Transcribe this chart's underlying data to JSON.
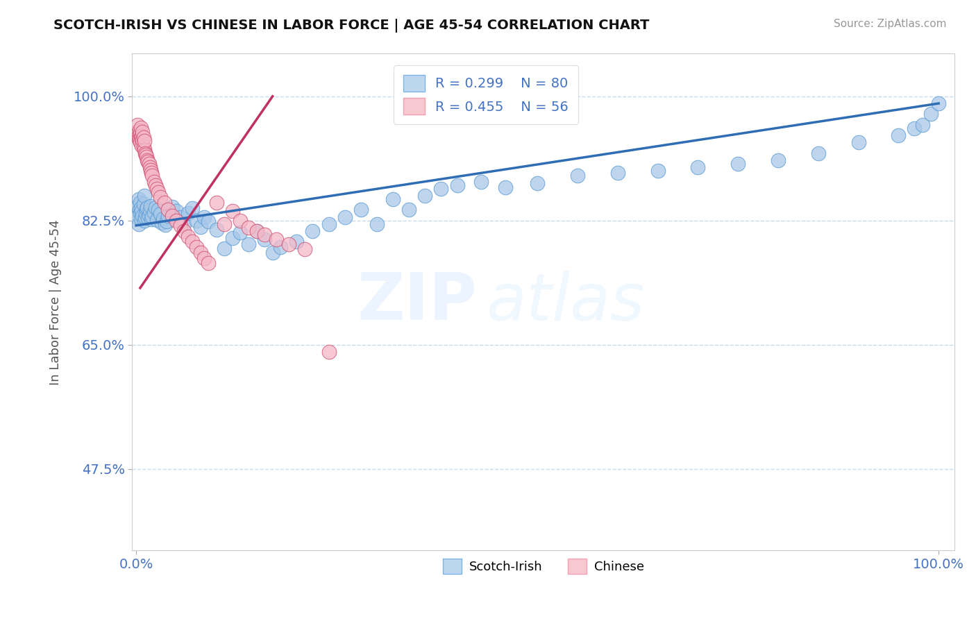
{
  "title": "SCOTCH-IRISH VS CHINESE IN LABOR FORCE | AGE 45-54 CORRELATION CHART",
  "source_text": "Source: ZipAtlas.com",
  "ylabel": "In Labor Force | Age 45-54",
  "xticks": [
    0.0,
    1.0
  ],
  "xticklabels": [
    "0.0%",
    "100.0%"
  ],
  "yticks": [
    0.475,
    0.65,
    0.825,
    1.0
  ],
  "yticklabels": [
    "47.5%",
    "65.0%",
    "82.5%",
    "100.0%"
  ],
  "watermark_zip": "ZIP",
  "watermark_atlas": "atlas",
  "blue_color": "#A8C8E8",
  "blue_edge": "#5B9BD5",
  "pink_color": "#F4B8C8",
  "pink_edge": "#D05070",
  "blue_line_color": "#2E6DB4",
  "pink_line_color": "#C03060",
  "grid_color": "#C8DCF0",
  "scotch_irish_x": [
    0.001,
    0.002,
    0.003,
    0.003,
    0.004,
    0.005,
    0.005,
    0.006,
    0.006,
    0.007,
    0.008,
    0.009,
    0.01,
    0.01,
    0.011,
    0.012,
    0.013,
    0.014,
    0.015,
    0.016,
    0.017,
    0.018,
    0.019,
    0.02,
    0.022,
    0.024,
    0.026,
    0.028,
    0.03,
    0.032,
    0.034,
    0.036,
    0.038,
    0.04,
    0.045,
    0.05,
    0.055,
    0.06,
    0.065,
    0.07,
    0.075,
    0.08,
    0.085,
    0.09,
    0.1,
    0.11,
    0.12,
    0.13,
    0.14,
    0.15,
    0.16,
    0.17,
    0.18,
    0.2,
    0.22,
    0.24,
    0.26,
    0.28,
    0.3,
    0.32,
    0.34,
    0.36,
    0.38,
    0.4,
    0.43,
    0.46,
    0.5,
    0.55,
    0.6,
    0.65,
    0.7,
    0.75,
    0.8,
    0.85,
    0.9,
    0.95,
    0.97,
    0.98,
    0.99,
    1.0
  ],
  "scotch_irish_y": [
    0.83,
    0.845,
    0.82,
    0.855,
    0.84,
    0.835,
    0.85,
    0.828,
    0.842,
    0.838,
    0.832,
    0.848,
    0.825,
    0.86,
    0.83,
    0.836,
    0.841,
    0.843,
    0.829,
    0.833,
    0.839,
    0.845,
    0.827,
    0.831,
    0.837,
    0.843,
    0.826,
    0.84,
    0.835,
    0.822,
    0.828,
    0.819,
    0.824,
    0.832,
    0.844,
    0.838,
    0.83,
    0.82,
    0.836,
    0.842,
    0.825,
    0.816,
    0.83,
    0.824,
    0.812,
    0.786,
    0.8,
    0.808,
    0.792,
    0.81,
    0.798,
    0.78,
    0.788,
    0.795,
    0.81,
    0.82,
    0.83,
    0.84,
    0.82,
    0.855,
    0.84,
    0.86,
    0.87,
    0.875,
    0.88,
    0.872,
    0.878,
    0.888,
    0.892,
    0.895,
    0.9,
    0.905,
    0.91,
    0.92,
    0.935,
    0.945,
    0.955,
    0.96,
    0.975,
    0.99
  ],
  "chinese_x": [
    0.001,
    0.002,
    0.003,
    0.003,
    0.004,
    0.004,
    0.005,
    0.005,
    0.006,
    0.006,
    0.007,
    0.007,
    0.008,
    0.008,
    0.009,
    0.009,
    0.01,
    0.01,
    0.011,
    0.012,
    0.013,
    0.014,
    0.015,
    0.016,
    0.017,
    0.018,
    0.019,
    0.02,
    0.022,
    0.024,
    0.026,
    0.028,
    0.03,
    0.035,
    0.04,
    0.045,
    0.05,
    0.055,
    0.06,
    0.065,
    0.07,
    0.075,
    0.08,
    0.085,
    0.09,
    0.1,
    0.11,
    0.12,
    0.13,
    0.14,
    0.15,
    0.16,
    0.175,
    0.19,
    0.21,
    0.24
  ],
  "chinese_y": [
    0.95,
    0.96,
    0.945,
    0.94,
    0.938,
    0.952,
    0.935,
    0.948,
    0.942,
    0.956,
    0.93,
    0.944,
    0.938,
    0.95,
    0.928,
    0.942,
    0.925,
    0.937,
    0.92,
    0.918,
    0.915,
    0.91,
    0.908,
    0.905,
    0.9,
    0.896,
    0.892,
    0.888,
    0.88,
    0.875,
    0.87,
    0.865,
    0.858,
    0.85,
    0.84,
    0.832,
    0.825,
    0.818,
    0.81,
    0.802,
    0.795,
    0.788,
    0.78,
    0.772,
    0.765,
    0.85,
    0.82,
    0.838,
    0.825,
    0.815,
    0.81,
    0.805,
    0.798,
    0.792,
    0.785,
    0.64
  ],
  "blue_line_x": [
    0.0,
    1.0
  ],
  "blue_line_y": [
    0.818,
    0.99
  ],
  "pink_line_x": [
    0.005,
    0.17
  ],
  "pink_line_y": [
    0.73,
    1.0
  ]
}
